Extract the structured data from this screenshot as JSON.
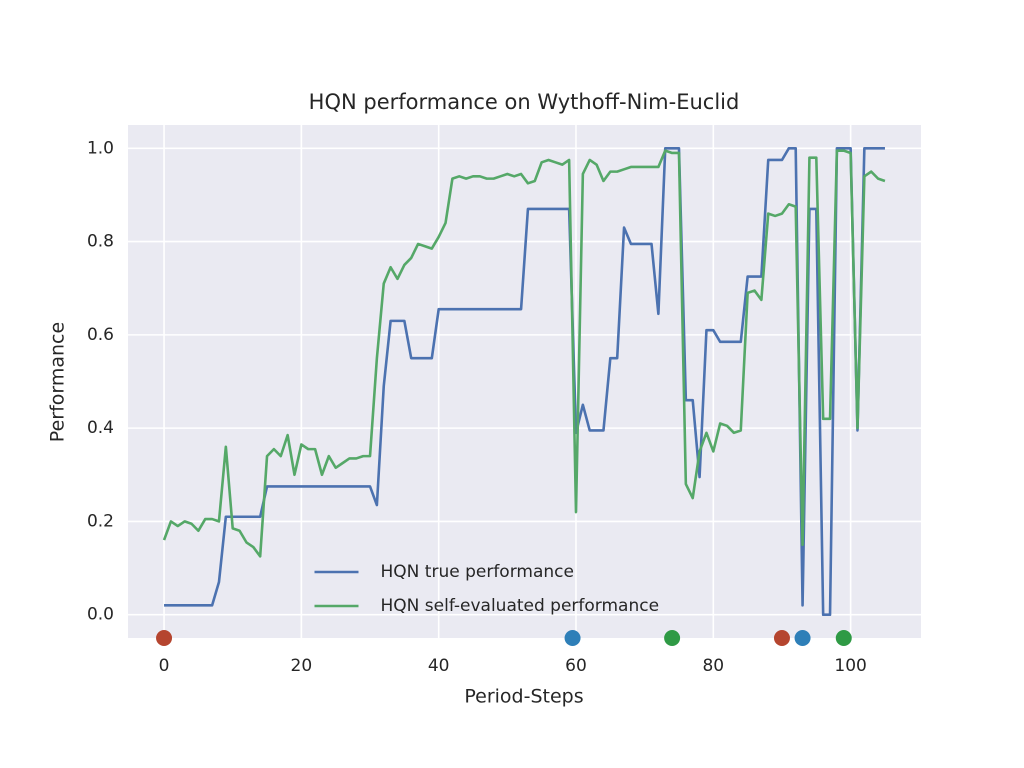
{
  "chart_data": {
    "type": "line",
    "title": "HQN performance on Wythoff-Nim-Euclid",
    "x_label": "Period-Steps",
    "y_label": "Performance",
    "x": [
      0,
      1,
      2,
      3,
      4,
      5,
      6,
      7,
      8,
      9,
      10,
      11,
      12,
      13,
      14,
      15,
      16,
      17,
      18,
      19,
      20,
      21,
      22,
      23,
      24,
      25,
      26,
      27,
      28,
      29,
      30,
      31,
      32,
      33,
      34,
      35,
      36,
      37,
      38,
      39,
      40,
      41,
      42,
      43,
      44,
      45,
      46,
      47,
      48,
      49,
      50,
      51,
      52,
      53,
      54,
      55,
      56,
      57,
      58,
      59,
      60,
      61,
      62,
      63,
      64,
      65,
      66,
      67,
      68,
      69,
      70,
      71,
      72,
      73,
      74,
      75,
      76,
      77,
      78,
      79,
      80,
      81,
      82,
      83,
      84,
      85,
      86,
      87,
      88,
      89,
      90,
      91,
      92,
      93,
      94,
      95,
      96,
      97,
      98,
      99,
      100,
      101,
      102,
      103,
      104,
      105
    ],
    "series": [
      {
        "name": "HQN true performance",
        "color": "#4c72b0",
        "values": [
          0.02,
          0.02,
          0.02,
          0.02,
          0.02,
          0.02,
          0.02,
          0.02,
          0.07,
          0.21,
          0.21,
          0.21,
          0.21,
          0.21,
          0.21,
          0.275,
          0.275,
          0.275,
          0.275,
          0.275,
          0.275,
          0.275,
          0.275,
          0.275,
          0.275,
          0.275,
          0.275,
          0.275,
          0.275,
          0.275,
          0.275,
          0.235,
          0.49,
          0.63,
          0.63,
          0.63,
          0.55,
          0.55,
          0.55,
          0.55,
          0.655,
          0.655,
          0.655,
          0.655,
          0.655,
          0.655,
          0.655,
          0.655,
          0.655,
          0.655,
          0.655,
          0.655,
          0.655,
          0.87,
          0.87,
          0.87,
          0.87,
          0.87,
          0.87,
          0.87,
          0.39,
          0.45,
          0.395,
          0.395,
          0.395,
          0.55,
          0.55,
          0.83,
          0.795,
          0.795,
          0.795,
          0.795,
          0.645,
          1.0,
          1.0,
          1.0,
          0.46,
          0.46,
          0.295,
          0.61,
          0.61,
          0.585,
          0.585,
          0.585,
          0.585,
          0.725,
          0.725,
          0.725,
          0.975,
          0.975,
          0.975,
          1.0,
          1.0,
          0.02,
          0.87,
          0.87,
          0.0,
          0.0,
          1.0,
          1.0,
          1.0,
          0.395,
          1.0,
          1.0,
          1.0,
          1.0
        ]
      },
      {
        "name": "HQN self-evaluated performance",
        "color": "#55a868",
        "values": [
          0.16,
          0.2,
          0.19,
          0.2,
          0.195,
          0.18,
          0.205,
          0.205,
          0.2,
          0.36,
          0.185,
          0.18,
          0.155,
          0.145,
          0.125,
          0.34,
          0.355,
          0.34,
          0.385,
          0.3,
          0.365,
          0.355,
          0.355,
          0.3,
          0.34,
          0.315,
          0.325,
          0.335,
          0.335,
          0.34,
          0.34,
          0.55,
          0.71,
          0.745,
          0.72,
          0.75,
          0.765,
          0.795,
          0.79,
          0.785,
          0.81,
          0.84,
          0.935,
          0.94,
          0.935,
          0.94,
          0.94,
          0.935,
          0.935,
          0.94,
          0.945,
          0.94,
          0.945,
          0.925,
          0.93,
          0.97,
          0.975,
          0.97,
          0.965,
          0.975,
          0.22,
          0.945,
          0.975,
          0.965,
          0.93,
          0.95,
          0.95,
          0.955,
          0.96,
          0.96,
          0.96,
          0.96,
          0.96,
          0.995,
          0.99,
          0.99,
          0.28,
          0.25,
          0.35,
          0.39,
          0.35,
          0.41,
          0.405,
          0.39,
          0.395,
          0.69,
          0.695,
          0.675,
          0.86,
          0.855,
          0.86,
          0.88,
          0.875,
          0.15,
          0.98,
          0.98,
          0.42,
          0.42,
          0.995,
          0.995,
          0.99,
          0.4,
          0.94,
          0.95,
          0.935,
          0.93
        ]
      }
    ],
    "events": {
      "x": [
        0,
        59.5,
        74,
        90,
        93,
        99
      ],
      "y": [
        -0.05,
        -0.05,
        -0.05,
        -0.05,
        -0.05,
        -0.05
      ],
      "colors": [
        "#b5452f",
        "#2e7fb8",
        "#2f9a45",
        "#b5452f",
        "#2e7fb8",
        "#2f9a45"
      ]
    },
    "xlim": [
      -5.25,
      110.25
    ],
    "xticks": [
      0,
      20,
      40,
      60,
      80,
      100
    ],
    "ylim": [
      -0.05,
      1.05
    ],
    "yticks": [
      {
        "value": 0,
        "label": "0.0"
      },
      {
        "value": 0.2,
        "label": "0.2"
      },
      {
        "value": 0.4,
        "label": "0.4"
      },
      {
        "value": 0.6,
        "label": "0.6"
      },
      {
        "value": 0.8,
        "label": "0.8"
      },
      {
        "value": 1,
        "label": "1.0"
      }
    ],
    "grid": true,
    "legend": "lower center"
  }
}
